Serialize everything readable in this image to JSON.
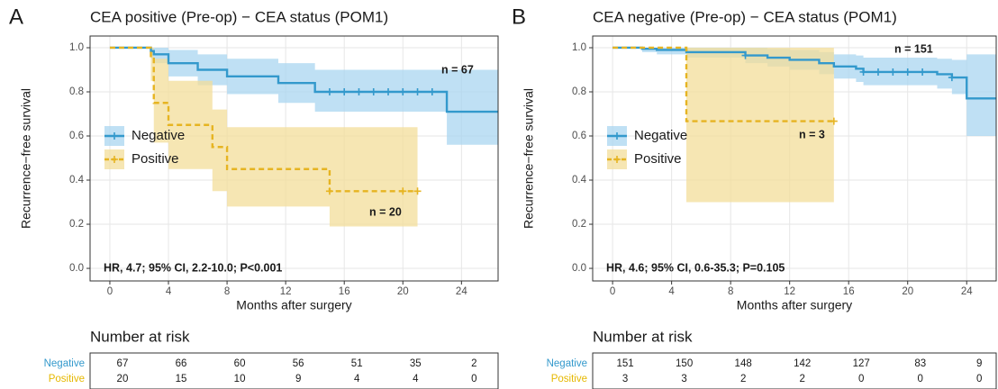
{
  "chart_data": [
    {
      "type": "step",
      "panel": "A",
      "title": "CEA positive (Pre-op) − CEA status (POM1)",
      "xlabel": "Months after surgery",
      "ylabel": "Recurrence−free survival",
      "xlim": [
        -1.35,
        26.5
      ],
      "ylim": [
        -0.057,
        1.053
      ],
      "xticks": [
        0,
        4,
        8,
        12,
        16,
        20,
        24
      ],
      "yticks": [
        {
          "value": 0,
          "label": "0.0"
        },
        {
          "value": 0.2,
          "label": "0.2"
        },
        {
          "value": 0.4,
          "label": "0.4"
        },
        {
          "value": 0.6,
          "label": "0.6"
        },
        {
          "value": 0.8,
          "label": "0.8"
        },
        {
          "value": 1,
          "label": "1.0"
        }
      ],
      "grid": true,
      "series": [
        {
          "name": "Negative",
          "color": "#3399cc",
          "band_color": "#a9d6f0",
          "dashed": false,
          "x": [
            0,
            2.8,
            3,
            4,
            6,
            8,
            11.5,
            14,
            23,
            26.5
          ],
          "y": [
            1,
            0.985,
            0.97,
            0.93,
            0.9,
            0.87,
            0.84,
            0.8,
            0.71,
            0.71
          ],
          "lower": [
            1,
            0.95,
            0.93,
            0.87,
            0.83,
            0.79,
            0.75,
            0.71,
            0.56,
            0.56
          ],
          "upper": [
            1,
            1,
            1,
            0.99,
            0.97,
            0.95,
            0.93,
            0.9,
            0.9,
            0.9
          ],
          "censor_x": [
            15,
            16,
            17,
            18,
            19,
            20,
            21,
            22
          ],
          "censor_y": [
            0.8,
            0.8,
            0.8,
            0.8,
            0.8,
            0.8,
            0.8,
            0.8
          ]
        },
        {
          "name": "Positive",
          "color": "#e6b422",
          "band_color": "#f3de9a",
          "dashed": true,
          "x": [
            0,
            2.8,
            3,
            4,
            7,
            8,
            15,
            21
          ],
          "y": [
            1,
            0.95,
            0.75,
            0.65,
            0.55,
            0.45,
            0.35,
            0.35
          ],
          "lower": [
            1,
            0.85,
            0.57,
            0.45,
            0.35,
            0.28,
            0.19,
            0.19
          ],
          "upper": [
            1,
            1,
            0.95,
            0.85,
            0.72,
            0.64,
            0.64,
            0.64
          ],
          "censor_x": [
            15,
            20,
            21
          ],
          "censor_y": [
            0.35,
            0.35,
            0.35
          ]
        }
      ],
      "annotations": [
        "n = 67",
        "n = 20",
        "HR, 4.7; 95% CI, 2.2-10.0; P<0.001"
      ],
      "risk_table": {
        "title": "Number at risk",
        "rows": [
          {
            "name": "Negative",
            "color": "#3399cc",
            "values": [
              67,
              66,
              60,
              56,
              51,
              35,
              2
            ]
          },
          {
            "name": "Positive",
            "color": "#e6b800",
            "values": [
              20,
              15,
              10,
              9,
              4,
              4,
              0
            ]
          }
        ]
      }
    },
    {
      "type": "step",
      "panel": "B",
      "title": "CEA negative (Pre-op) − CEA status (POM1)",
      "xlabel": "Months after surgery",
      "ylabel": "Recurrence−free survival",
      "xlim": [
        -1.35,
        26.0
      ],
      "ylim": [
        -0.057,
        1.053
      ],
      "xticks": [
        0,
        4,
        8,
        12,
        16,
        20,
        24
      ],
      "yticks": [
        {
          "value": 0,
          "label": "0.0"
        },
        {
          "value": 0.2,
          "label": "0.2"
        },
        {
          "value": 0.4,
          "label": "0.4"
        },
        {
          "value": 0.6,
          "label": "0.6"
        },
        {
          "value": 0.8,
          "label": "0.8"
        },
        {
          "value": 1,
          "label": "1.0"
        }
      ],
      "grid": true,
      "series": [
        {
          "name": "Negative",
          "color": "#3399cc",
          "band_color": "#a9d6f0",
          "dashed": false,
          "x": [
            0,
            2,
            3,
            5,
            9,
            10.5,
            12,
            14,
            15,
            16.5,
            17,
            22,
            23,
            24,
            26
          ],
          "y": [
            1,
            0.995,
            0.99,
            0.98,
            0.965,
            0.955,
            0.945,
            0.93,
            0.915,
            0.905,
            0.89,
            0.88,
            0.865,
            0.77,
            0.77
          ],
          "lower": [
            1,
            0.98,
            0.97,
            0.955,
            0.93,
            0.915,
            0.9,
            0.88,
            0.86,
            0.845,
            0.83,
            0.815,
            0.79,
            0.6,
            0.6
          ],
          "upper": [
            1,
            1,
            1,
            1,
            1,
            0.995,
            0.99,
            0.98,
            0.97,
            0.965,
            0.955,
            0.95,
            0.945,
            0.97,
            0.97
          ],
          "censor_x": [
            9,
            17,
            18,
            19,
            20,
            21,
            23
          ],
          "censor_y": [
            0.965,
            0.89,
            0.89,
            0.89,
            0.89,
            0.89,
            0.865
          ]
        },
        {
          "name": "Positive",
          "color": "#e6b422",
          "band_color": "#f3de9a",
          "dashed": true,
          "x": [
            0,
            5,
            15
          ],
          "y": [
            1,
            0.667,
            0.667
          ],
          "lower": [
            1,
            0.3,
            0.3
          ],
          "upper": [
            1,
            1,
            1
          ],
          "censor_x": [
            15
          ],
          "censor_y": [
            0.667
          ]
        }
      ],
      "annotations": [
        "n = 151",
        "n = 3",
        "HR, 4.6; 95% CI, 0.6-35.3; P=0.105"
      ],
      "risk_table": {
        "title": "Number at risk",
        "rows": [
          {
            "name": "Negative",
            "color": "#3399cc",
            "values": [
              151,
              150,
              148,
              142,
              127,
              83,
              9
            ]
          },
          {
            "name": "Positive",
            "color": "#e6b800",
            "values": [
              3,
              3,
              2,
              2,
              0,
              0,
              0
            ]
          }
        ]
      }
    }
  ]
}
